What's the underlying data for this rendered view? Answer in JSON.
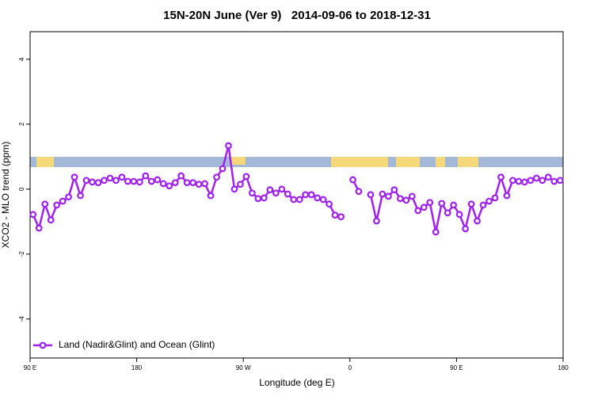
{
  "chart_data": {
    "type": "line",
    "title": "15N-20N June (Ver 9)   2014-09-06 to 2018-12-31",
    "x_label": "Longitude (deg E)",
    "y_label": "XCO2 - MLO trend (ppm)",
    "xlim": [
      90,
      540
    ],
    "ylim": [
      -5.2,
      4.85
    ],
    "xticks": [
      {
        "value": 90,
        "label": "90 E"
      },
      180,
      {
        "value": 270,
        "label": "90 W"
      },
      {
        "value": 360,
        "label": "0"
      },
      {
        "value": 450,
        "label": "90 E"
      },
      {
        "value": 540,
        "label": "180"
      }
    ],
    "yticks": [
      -4,
      -2,
      0,
      2,
      4
    ],
    "legend": "bottom-left",
    "x": [
      92.5,
      97.5,
      102.5,
      107.5,
      112.5,
      117.5,
      122.5,
      127.5,
      132.5,
      137.5,
      142.5,
      147.5,
      152.5,
      157.5,
      162.5,
      167.5,
      172.5,
      177.5,
      182.5,
      187.5,
      192.5,
      197.5,
      202.5,
      207.5,
      212.5,
      217.5,
      222.5,
      227.5,
      232.5,
      237.5,
      242.5,
      247.5,
      252.5,
      257.5,
      262.5,
      267.5,
      272.5,
      277.5,
      282.5,
      287.5,
      292.5,
      297.5,
      302.5,
      307.5,
      312.5,
      317.5,
      322.5,
      327.5,
      332.5,
      337.5,
      342.5,
      347.5,
      352.5,
      357.5,
      362.5,
      367.5,
      372.5,
      377.5,
      382.5,
      387.5,
      392.5,
      397.5,
      402.5,
      407.5,
      412.5,
      417.5,
      422.5,
      427.5,
      432.5,
      437.5,
      442.5,
      447.5,
      452.5,
      457.5,
      462.5,
      467.5,
      472.5,
      477.5,
      482.5,
      487.5,
      492.5,
      497.5,
      502.5,
      507.5,
      512.5,
      517.5,
      522.5,
      527.5,
      532.5,
      537.5
    ],
    "series": [
      {
        "name": "Land (Nadir&Glint) and Ocean (Glint)",
        "color": "#a020f0",
        "values": [
          -0.78,
          -1.2,
          -0.46,
          -0.95,
          -0.49,
          -0.37,
          -0.24,
          0.37,
          -0.2,
          0.27,
          0.22,
          0.2,
          0.27,
          0.34,
          0.27,
          0.37,
          0.24,
          0.24,
          0.22,
          0.41,
          0.24,
          0.29,
          0.17,
          0.1,
          0.2,
          0.41,
          0.2,
          0.2,
          0.15,
          0.17,
          -0.2,
          0.37,
          0.63,
          1.34,
          0,
          0.15,
          0.39,
          -0.12,
          -0.29,
          -0.27,
          -0.02,
          -0.12,
          0,
          -0.15,
          -0.32,
          -0.32,
          -0.17,
          -0.17,
          -0.27,
          -0.32,
          -0.46,
          -0.8,
          -0.85,
          null,
          0.29,
          -0.07,
          null,
          -0.17,
          -0.98,
          -0.15,
          -0.22,
          -0.02,
          -0.29,
          -0.34,
          -0.22,
          -0.66,
          -0.56,
          -0.41,
          -1.32,
          -0.44,
          -0.73,
          -0.49,
          -0.78,
          -1.22,
          -0.46,
          -0.98,
          -0.49,
          -0.37,
          -0.27,
          0.37,
          -0.2,
          0.27,
          0.24,
          0.22,
          0.27,
          0.34,
          0.27,
          0.37,
          0.24,
          0.27
        ]
      }
    ]
  }
}
